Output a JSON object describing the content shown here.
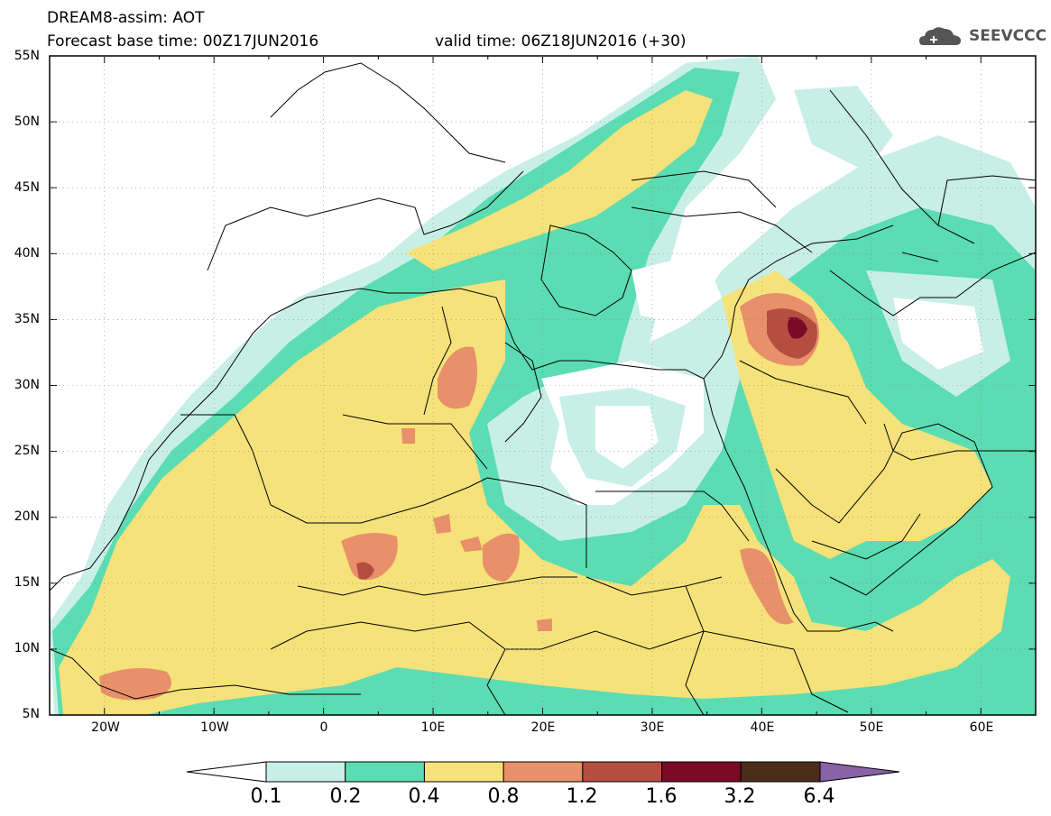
{
  "header": {
    "title_line": "DREAM8-assim: AOT",
    "base_time_line": "Forecast base time: 00Z17JUN2016",
    "valid_line": "valid time: 06Z18JUN2016 (+30)",
    "logo_text": "SEEVCCC"
  },
  "map": {
    "lat_labels": [
      "55N",
      "50N",
      "45N",
      "40N",
      "35N",
      "30N",
      "25N",
      "20N",
      "15N",
      "10N",
      "5N"
    ],
    "lon_labels": [
      "20W",
      "10W",
      "0",
      "10E",
      "20E",
      "30E",
      "40E",
      "50E",
      "60E"
    ],
    "extent": {
      "lon": [
        -25,
        65
      ],
      "lat": [
        5,
        55
      ]
    }
  },
  "colorbar": {
    "labels": [
      "0.1",
      "0.2",
      "0.4",
      "0.8",
      "1.2",
      "1.6",
      "3.2",
      "6.4"
    ],
    "colors": [
      "#ffffff",
      "#c8efe6",
      "#5bdcb2",
      "#f6e27a",
      "#e8906a",
      "#b44e40",
      "#7a0a26",
      "#4b2d1a",
      "#8a62a8"
    ]
  }
}
